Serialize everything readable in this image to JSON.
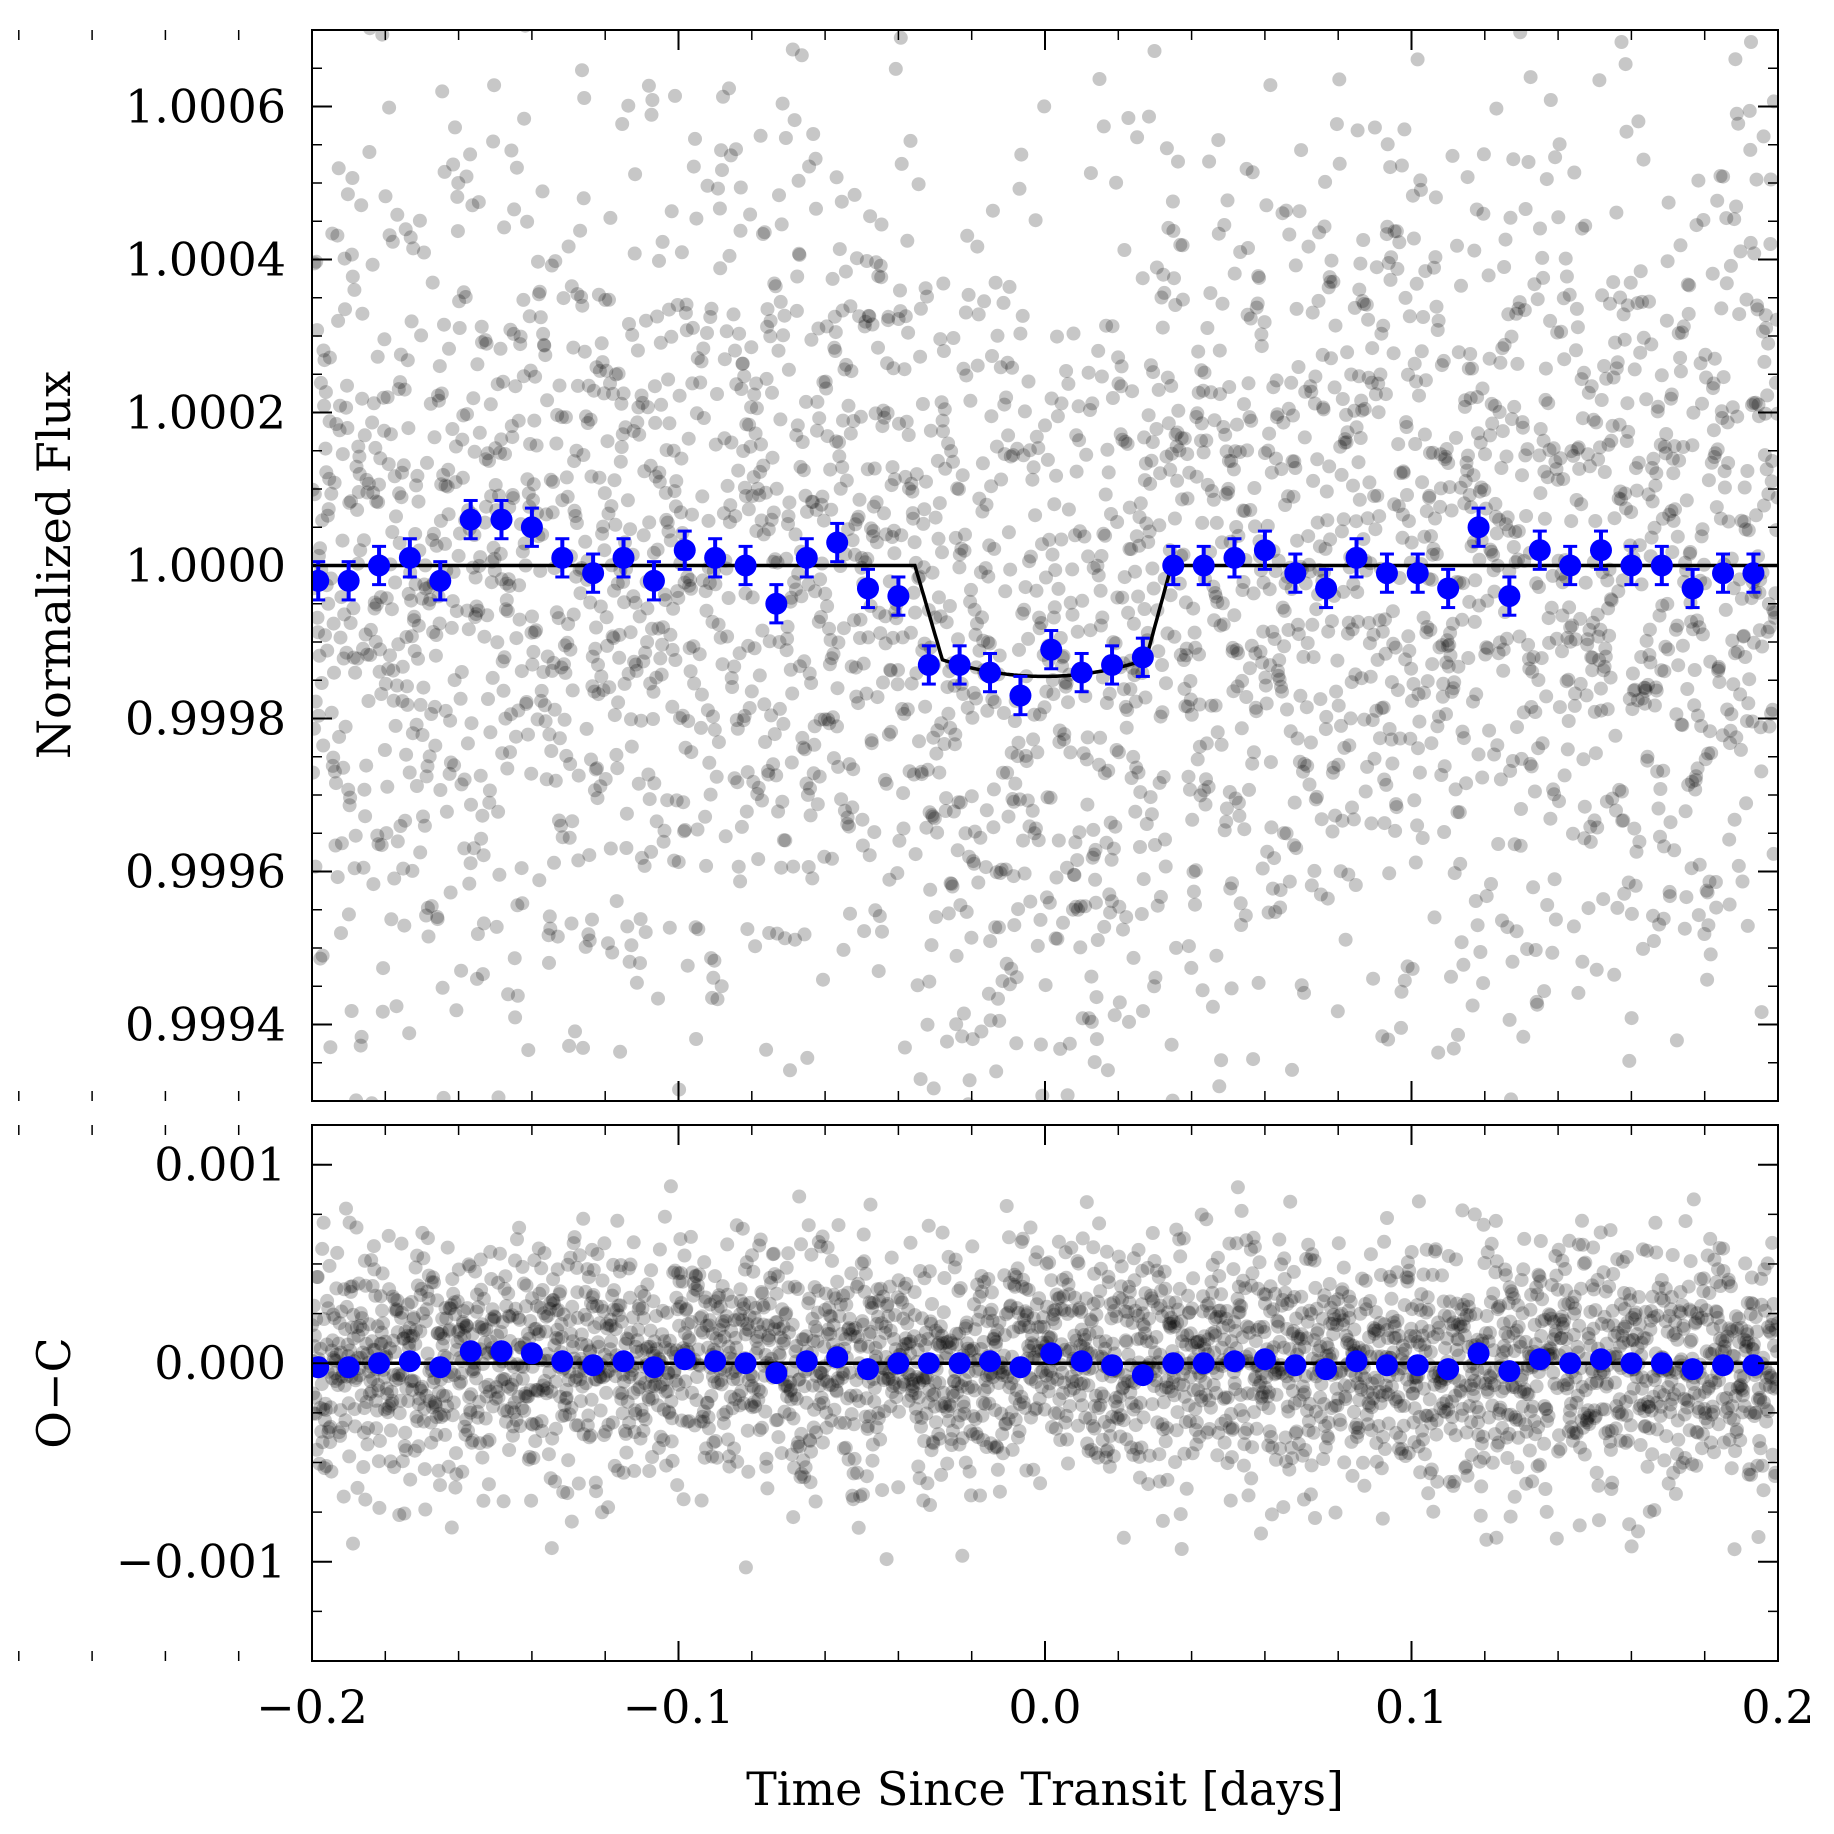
{
  "chart_data": [
    {
      "type": "scatter",
      "ylabel": "Normalized Flux",
      "xlabel": "",
      "xlim": [
        -0.2,
        0.2
      ],
      "ylim": [
        0.9993,
        1.0007
      ],
      "yticks": [
        0.9994,
        0.9996,
        0.9998,
        1.0,
        1.0002,
        1.0004,
        1.0006
      ],
      "ytick_labels": [
        "0.9994",
        "0.9996",
        "0.9998",
        "1.0000",
        "1.0002",
        "1.0004",
        "1.0006"
      ],
      "raw_points_color": "#000000",
      "raw_points_alpha": 0.22,
      "raw_points_std": 0.0003,
      "binned_color": "#0000ff",
      "model_color": "#000000",
      "transit_model": {
        "depth": 0.000145,
        "ingress_start": -0.0355,
        "ingress_end": -0.028,
        "egress_start": 0.0275,
        "egress_end": 0.0345
      },
      "binned": {
        "x": [
          -0.1983,
          -0.19,
          -0.1817,
          -0.1733,
          -0.165,
          -0.1567,
          -0.1483,
          -0.14,
          -0.1317,
          -0.1233,
          -0.115,
          -0.1067,
          -0.0983,
          -0.09,
          -0.0817,
          -0.0733,
          -0.065,
          -0.0567,
          -0.0483,
          -0.04,
          -0.0317,
          -0.0233,
          -0.015,
          -0.0067,
          0.0017,
          0.01,
          0.0183,
          0.0267,
          0.035,
          0.0433,
          0.0517,
          0.06,
          0.0683,
          0.0767,
          0.085,
          0.0933,
          0.1017,
          0.11,
          0.1183,
          0.1267,
          0.135,
          0.1433,
          0.1517,
          0.16,
          0.1683,
          0.1767,
          0.185,
          0.1933
        ],
        "y": [
          0.99998,
          0.99998,
          1.0,
          1.00001,
          0.99998,
          1.00006,
          1.00006,
          1.00005,
          1.00001,
          0.99999,
          1.00001,
          0.99998,
          1.00002,
          1.00001,
          1.0,
          0.99995,
          1.00001,
          1.00003,
          0.99997,
          0.99996,
          0.99987,
          0.99987,
          0.99986,
          0.99983,
          0.99989,
          0.99986,
          0.99987,
          0.99988,
          1.0,
          1.0,
          1.00001,
          1.00002,
          0.99999,
          0.99997,
          1.00001,
          0.99999,
          0.99999,
          0.99997,
          1.00005,
          0.99996,
          1.00002,
          1.0,
          1.00002,
          1.0,
          1.0,
          0.99997,
          0.99999,
          0.99999
        ],
        "yerr": 2.5e-05
      }
    },
    {
      "type": "scatter",
      "ylabel": "O−C",
      "xlabel": "Time Since Transit [days]",
      "xlim": [
        -0.2,
        0.2
      ],
      "ylim": [
        -0.0015,
        0.0012
      ],
      "yticks": [
        -0.001,
        0.0,
        0.001
      ],
      "ytick_labels": [
        "−0.001",
        "0.000",
        "0.001"
      ],
      "xticks": [
        -0.2,
        -0.1,
        0.0,
        0.1,
        0.2
      ],
      "xtick_labels": [
        "−0.2",
        "−0.1",
        "0.0",
        "0.1",
        "0.2"
      ],
      "raw_points_color": "#000000",
      "raw_points_alpha": 0.22,
      "raw_points_std": 0.0003,
      "binned_color": "#0000ff",
      "model_color": "#000000",
      "binned": {
        "x": [
          -0.1983,
          -0.19,
          -0.1817,
          -0.1733,
          -0.165,
          -0.1567,
          -0.1483,
          -0.14,
          -0.1317,
          -0.1233,
          -0.115,
          -0.1067,
          -0.0983,
          -0.09,
          -0.0817,
          -0.0733,
          -0.065,
          -0.0567,
          -0.0483,
          -0.04,
          -0.0317,
          -0.0233,
          -0.015,
          -0.0067,
          0.0017,
          0.01,
          0.0183,
          0.0267,
          0.035,
          0.0433,
          0.0517,
          0.06,
          0.0683,
          0.0767,
          0.085,
          0.0933,
          0.1017,
          0.11,
          0.1183,
          0.1267,
          0.135,
          0.1433,
          0.1517,
          0.16,
          0.1683,
          0.1767,
          0.185,
          0.1933
        ],
        "y": [
          -2e-05,
          -2e-05,
          0.0,
          1e-05,
          -2e-05,
          6e-05,
          6e-05,
          5e-05,
          1e-05,
          -1e-05,
          1e-05,
          -2e-05,
          2e-05,
          1e-05,
          0.0,
          -5e-05,
          1e-05,
          3e-05,
          -3e-05,
          0.0,
          0.0,
          0.0,
          1e-05,
          -2e-05,
          5e-05,
          1e-05,
          -1e-05,
          -6e-05,
          0.0,
          0.0,
          1e-05,
          2e-05,
          -1e-05,
          -3e-05,
          1e-05,
          -1e-05,
          -1e-05,
          -3e-05,
          5e-05,
          -4e-05,
          2e-05,
          0.0,
          2e-05,
          0.0,
          0.0,
          -3e-05,
          -1e-05,
          -1e-05
        ]
      }
    }
  ]
}
